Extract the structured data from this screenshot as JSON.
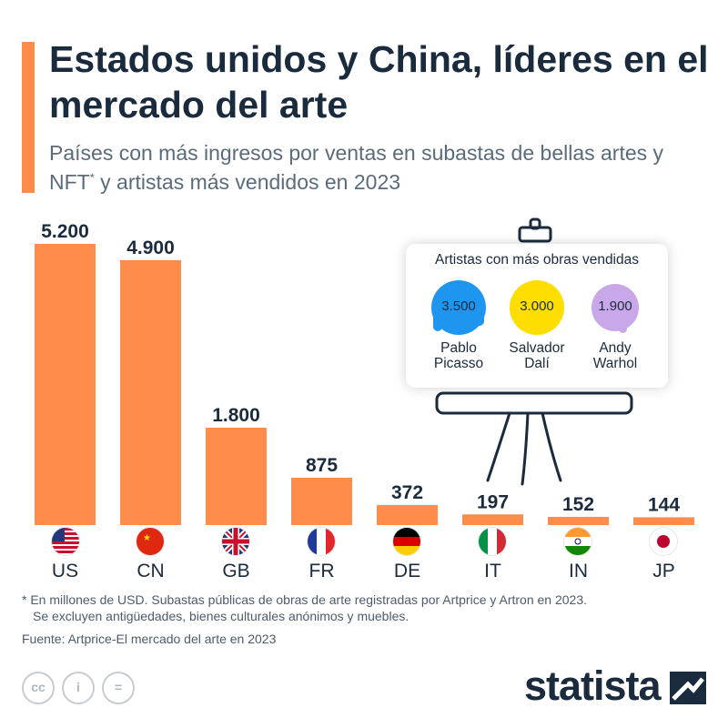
{
  "header": {
    "title": "Estados unidos y China, líderes en el mercado del arte",
    "subtitle_main": "Países con más ingresos por ventas en subastas de bellas artes y NFT",
    "subtitle_mark": "*",
    "subtitle_tail": " y artistas más vendidos en 2023"
  },
  "chart_data": {
    "type": "bar",
    "categories": [
      "US",
      "CN",
      "GB",
      "FR",
      "DE",
      "IT",
      "IN",
      "JP"
    ],
    "values": [
      5200,
      4900,
      1800,
      875,
      372,
      197,
      152,
      144
    ],
    "value_labels": [
      "5.200",
      "4.900",
      "1.800",
      "875",
      "372",
      "197",
      "152",
      "144"
    ],
    "ylim": [
      0,
      5200
    ],
    "grid": false,
    "bar_color": "#ff8c4b"
  },
  "artists_card": {
    "title": "Artistas con más obras vendidas",
    "artists": [
      {
        "value": "3.500",
        "name": "Pablo\nPicasso",
        "color": "#1e96f0"
      },
      {
        "value": "3.000",
        "name": "Salvador\nDalí",
        "color": "#fedd00"
      },
      {
        "value": "1.900",
        "name": "Andy\nWarhol",
        "color": "#c9a8ea"
      }
    ]
  },
  "footnote": {
    "line1": "* En millones de USD. Subastas públicas de obras de arte registradas por Artprice y Artron en 2023.",
    "line2": "Se excluyen antigüedades, bienes culturales anónimos y muebles."
  },
  "source": "Fuente: Artprice-El mercado del arte en 2023",
  "license_icons": [
    "cc-icon",
    "by-icon",
    "nd-icon"
  ],
  "brand": "statista"
}
